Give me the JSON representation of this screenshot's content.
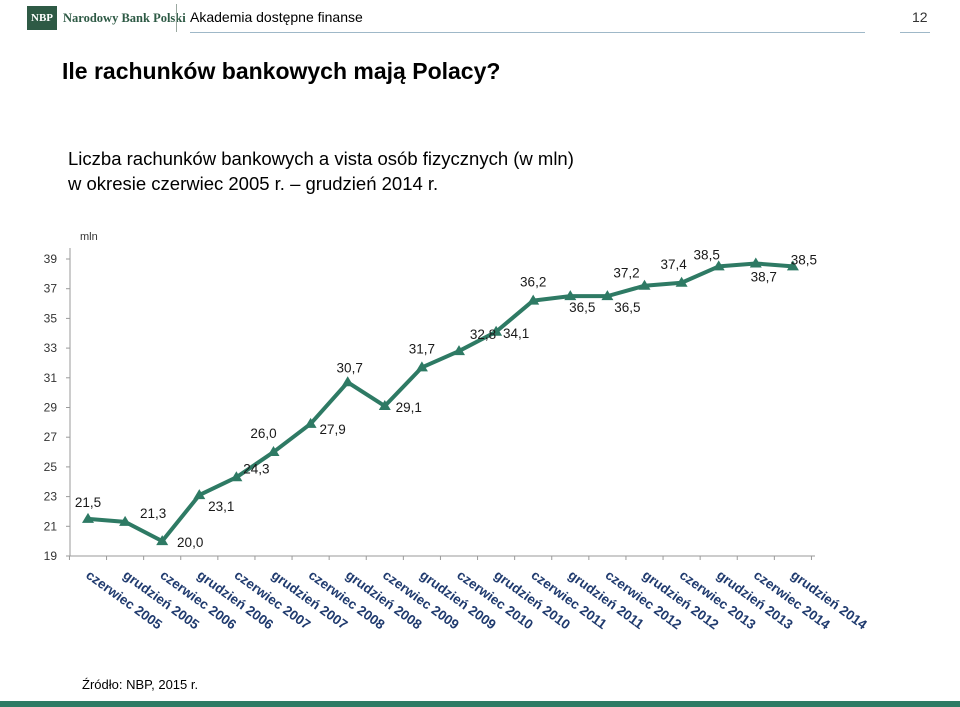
{
  "header": {
    "logo_abbr": "NBP",
    "logo_name": "Narodowy Bank Polski",
    "section": "Akademia dostępne finanse",
    "page_number": "12"
  },
  "title": "Ile rachunków bankowych mają Polacy?",
  "subtitle_line1": "Liczba rachunków bankowych a vista osób fizycznych (w mln)",
  "subtitle_line2": "w okresie czerwiec 2005 r. – grudzień 2014 r.",
  "source": "Źródło: NBP, 2015 r.",
  "colors": {
    "line": "#2e7a64",
    "bar": "#2e7a64",
    "axis": "#9a9a9a",
    "xlabel": "#1f3a6e"
  },
  "chart_data": {
    "type": "line",
    "ylabel": "mln",
    "ylim": [
      19,
      39
    ],
    "yticks": [
      19,
      21,
      23,
      25,
      27,
      29,
      31,
      33,
      35,
      37,
      39
    ],
    "categories": [
      "czerwiec 2005",
      "grudzień 2005",
      "czerwiec 2006",
      "grudzień 2006",
      "czerwiec 2007",
      "grudzień 2007",
      "czerwiec 2008",
      "grudzień 2008",
      "czerwiec 2009",
      "grudzień 2009",
      "czerwiec 2010",
      "grudzień 2010",
      "czerwiec 2011",
      "grudzień 2011",
      "czerwiec 2012",
      "grudzień 2012",
      "czerwiec 2013",
      "grudzień 2013",
      "czerwiec 2014",
      "grudzień 2014"
    ],
    "values": [
      21.5,
      21.3,
      20.0,
      23.1,
      24.3,
      26.0,
      27.9,
      30.7,
      29.1,
      31.7,
      32.8,
      34.1,
      36.2,
      36.5,
      36.5,
      37.2,
      37.4,
      38.5,
      38.7,
      38.5
    ],
    "data_labels": [
      "21,5",
      "21,3",
      "20,0",
      "23,1",
      "24,3",
      "26,0",
      "27,9",
      "30,7",
      "29,1",
      "31,7",
      "32,8",
      "34,1",
      "36,2",
      "36,5",
      "36,5",
      "37,2",
      "37,4",
      "38,5",
      "38,7",
      "38,5"
    ],
    "grid": false,
    "legend": "none"
  }
}
